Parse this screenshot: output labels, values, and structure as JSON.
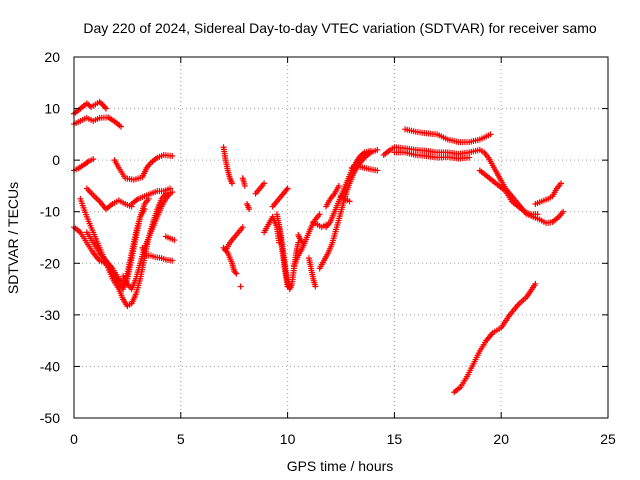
{
  "chart_data": {
    "type": "scatter",
    "title": "Day 220 of 2024, Sidereal Day-to-day VTEC variation (SDTVAR) for receiver samo",
    "xlabel": "GPS time / hours",
    "ylabel": "SDTVAR / TECUs",
    "xlim": [
      0,
      25
    ],
    "ylim": [
      -50,
      20
    ],
    "xticks": [
      0,
      5,
      10,
      15,
      20,
      25
    ],
    "yticks": [
      -50,
      -40,
      -30,
      -20,
      -10,
      0,
      10,
      20
    ],
    "grid": true,
    "marker": "+",
    "color": "#ff0000",
    "series": [
      {
        "values": [
          [
            0,
            9
          ],
          [
            0.3,
            10
          ],
          [
            0.6,
            11
          ],
          [
            0.8,
            10.3
          ],
          [
            1.0,
            10.8
          ],
          [
            1.2,
            11.3
          ],
          [
            1.4,
            10.5
          ],
          [
            1.5,
            10
          ]
        ]
      },
      {
        "values": [
          [
            0,
            7
          ],
          [
            0.3,
            7.6
          ],
          [
            0.6,
            8.2
          ],
          [
            0.9,
            7.6
          ],
          [
            1.2,
            8.2
          ],
          [
            1.6,
            8.3
          ],
          [
            1.9,
            7.5
          ],
          [
            2.2,
            6.5
          ]
        ]
      },
      {
        "values": [
          [
            0,
            -2
          ],
          [
            0.2,
            -1.6
          ],
          [
            0.5,
            -0.8
          ],
          [
            0.7,
            -0.2
          ],
          [
            0.9,
            0.2
          ]
        ]
      },
      {
        "values": [
          [
            1.9,
            0
          ],
          [
            2.1,
            -1.5
          ],
          [
            2.4,
            -3.5
          ],
          [
            2.8,
            -3.8
          ],
          [
            3.2,
            -3.3
          ],
          [
            3.4,
            -1.5
          ],
          [
            3.6,
            -0.5
          ],
          [
            3.9,
            0.5
          ],
          [
            4.2,
            1
          ],
          [
            4.6,
            0.8
          ]
        ]
      },
      {
        "values": [
          [
            0.6,
            -5.5
          ],
          [
            0.9,
            -6.8
          ],
          [
            1.2,
            -8
          ],
          [
            1.5,
            -9.5
          ],
          [
            1.8,
            -8.5
          ],
          [
            2.1,
            -7.8
          ],
          [
            2.4,
            -8.5
          ],
          [
            2.7,
            -9
          ]
        ]
      },
      {
        "values": [
          [
            2.7,
            -8.5
          ],
          [
            3.0,
            -7.5
          ],
          [
            3.3,
            -7
          ],
          [
            3.6,
            -6.5
          ],
          [
            3.9,
            -6
          ],
          [
            4.2,
            -6
          ],
          [
            4.5,
            -5.5
          ]
        ]
      },
      {
        "values": [
          [
            0.3,
            -7.5
          ],
          [
            0.6,
            -11
          ],
          [
            0.9,
            -14
          ],
          [
            1.2,
            -17
          ],
          [
            1.5,
            -20
          ],
          [
            1.8,
            -23
          ],
          [
            2.1,
            -25
          ],
          [
            2.3,
            -27
          ],
          [
            2.5,
            -28.3
          ],
          [
            2.7,
            -27.8
          ],
          [
            2.9,
            -26
          ],
          [
            3.1,
            -23
          ],
          [
            3.3,
            -19
          ],
          [
            3.5,
            -15
          ],
          [
            3.7,
            -12
          ],
          [
            3.9,
            -9.5
          ],
          [
            4.1,
            -7.5
          ],
          [
            4.3,
            -6.5
          ],
          [
            4.6,
            -6.2
          ]
        ]
      },
      {
        "values": [
          [
            0,
            -13
          ],
          [
            0.3,
            -14
          ],
          [
            0.6,
            -16
          ],
          [
            0.9,
            -18
          ],
          [
            1.2,
            -19.5
          ],
          [
            1.5,
            -20
          ],
          [
            1.8,
            -21.5
          ],
          [
            2.1,
            -24
          ],
          [
            2.3,
            -25
          ],
          [
            2.5,
            -23
          ],
          [
            2.7,
            -19
          ],
          [
            2.9,
            -15
          ],
          [
            3.1,
            -11
          ],
          [
            3.3,
            -8.5
          ],
          [
            3.5,
            -7.5
          ]
        ]
      },
      {
        "values": [
          [
            0.6,
            -14
          ],
          [
            0.9,
            -16
          ],
          [
            1.2,
            -18
          ],
          [
            1.5,
            -19.5
          ],
          [
            1.8,
            -21
          ],
          [
            2.1,
            -23
          ],
          [
            2.3,
            -24
          ],
          [
            2.5,
            -22
          ],
          [
            2.7,
            -18
          ],
          [
            2.9,
            -14
          ],
          [
            3.1,
            -11
          ],
          [
            3.3,
            -9.5
          ]
        ]
      },
      {
        "values": [
          [
            2.3,
            -22.5
          ],
          [
            2.5,
            -24
          ],
          [
            2.7,
            -25
          ],
          [
            2.9,
            -23
          ],
          [
            3.1,
            -20
          ],
          [
            3.3,
            -17
          ],
          [
            3.5,
            -15
          ],
          [
            3.7,
            -13
          ],
          [
            3.9,
            -11
          ],
          [
            4.1,
            -9
          ],
          [
            4.3,
            -7.5
          ],
          [
            4.5,
            -6.5
          ]
        ]
      },
      {
        "values": [
          [
            3.2,
            -17
          ],
          [
            3.4,
            -18.5
          ],
          [
            3.6,
            -18.5
          ],
          [
            3.8,
            -18.8
          ],
          [
            4.1,
            -19
          ],
          [
            4.3,
            -19.3
          ],
          [
            4.6,
            -19.5
          ]
        ]
      },
      {
        "values": [
          [
            4.3,
            -14.8
          ],
          [
            4.5,
            -15.2
          ],
          [
            4.7,
            -15.5
          ]
        ]
      },
      {
        "values": [
          [
            7.0,
            2.5
          ],
          [
            7.1,
            0
          ],
          [
            7.2,
            -2
          ],
          [
            7.3,
            -3.5
          ],
          [
            7.4,
            -4.5
          ]
        ]
      },
      {
        "values": [
          [
            7.0,
            -17
          ],
          [
            7.2,
            -18
          ],
          [
            7.4,
            -20
          ],
          [
            7.5,
            -21.5
          ],
          [
            7.6,
            -22
          ]
        ]
      },
      {
        "values": [
          [
            7.1,
            -17.5
          ],
          [
            7.3,
            -16
          ],
          [
            7.5,
            -15
          ],
          [
            7.7,
            -14
          ],
          [
            7.9,
            -13
          ]
        ]
      },
      {
        "values": [
          [
            7.8,
            -24.5
          ]
        ]
      },
      {
        "values": [
          [
            7.9,
            -3.5
          ],
          [
            7.95,
            -4.2
          ],
          [
            8.0,
            -5
          ]
        ]
      },
      {
        "values": [
          [
            8.1,
            -8.5
          ],
          [
            8.2,
            -9.5
          ]
        ]
      },
      {
        "values": [
          [
            8.5,
            -6.5
          ],
          [
            8.7,
            -5.5
          ],
          [
            8.9,
            -4.5
          ]
        ]
      },
      {
        "values": [
          [
            8.9,
            -14
          ],
          [
            9.1,
            -12.5
          ],
          [
            9.3,
            -11
          ],
          [
            9.5,
            -13
          ],
          [
            9.6,
            -16
          ]
        ]
      },
      {
        "values": [
          [
            9.3,
            -9
          ],
          [
            9.5,
            -8
          ],
          [
            9.7,
            -7
          ],
          [
            9.9,
            -6
          ],
          [
            10.0,
            -5.5
          ]
        ]
      },
      {
        "values": [
          [
            9.5,
            -10.5
          ],
          [
            9.6,
            -12.5
          ],
          [
            9.7,
            -15
          ],
          [
            9.8,
            -18
          ],
          [
            9.9,
            -21
          ],
          [
            10.0,
            -23.5
          ],
          [
            10.1,
            -25
          ],
          [
            10.2,
            -24
          ],
          [
            10.3,
            -21
          ],
          [
            10.4,
            -18
          ],
          [
            10.5,
            -16
          ]
        ]
      },
      {
        "values": [
          [
            9.6,
            -13
          ],
          [
            9.7,
            -16
          ],
          [
            9.8,
            -19
          ],
          [
            9.9,
            -22
          ],
          [
            10.0,
            -24.5
          ]
        ]
      },
      {
        "values": [
          [
            10.3,
            -20.5
          ],
          [
            10.5,
            -18.5
          ],
          [
            10.7,
            -17
          ],
          [
            10.9,
            -15
          ],
          [
            11.1,
            -13
          ],
          [
            11.3,
            -11.5
          ],
          [
            11.5,
            -10.5
          ]
        ]
      },
      {
        "values": [
          [
            10.5,
            -14.5
          ],
          [
            10.6,
            -15.5
          ],
          [
            10.7,
            -16
          ]
        ]
      },
      {
        "values": [
          [
            11.0,
            -19
          ],
          [
            11.1,
            -21
          ],
          [
            11.2,
            -23
          ],
          [
            11.3,
            -24.5
          ]
        ]
      },
      {
        "values": [
          [
            11.2,
            -12
          ],
          [
            11.4,
            -12.5
          ],
          [
            11.6,
            -13
          ],
          [
            11.8,
            -12.5
          ]
        ]
      },
      {
        "values": [
          [
            11.5,
            -21
          ],
          [
            11.7,
            -19.5
          ],
          [
            11.9,
            -18
          ],
          [
            12.1,
            -16
          ],
          [
            12.3,
            -13
          ],
          [
            12.5,
            -10
          ],
          [
            12.7,
            -7
          ],
          [
            12.9,
            -4.5
          ],
          [
            13.1,
            -2.5
          ],
          [
            13.3,
            -1
          ],
          [
            13.6,
            0.5
          ],
          [
            13.9,
            1.5
          ],
          [
            14.2,
            2
          ]
        ]
      },
      {
        "values": [
          [
            11.8,
            -13
          ],
          [
            12.0,
            -12
          ],
          [
            12.2,
            -10
          ],
          [
            12.4,
            -8
          ],
          [
            12.6,
            -6
          ],
          [
            12.8,
            -4
          ],
          [
            13.0,
            -2
          ],
          [
            13.2,
            -0.5
          ],
          [
            13.4,
            0.8
          ],
          [
            13.6,
            1.5
          ],
          [
            13.9,
            1.8
          ]
        ]
      },
      {
        "values": [
          [
            11.8,
            -9
          ],
          [
            12.0,
            -7.5
          ],
          [
            12.2,
            -6.5
          ],
          [
            12.4,
            -5
          ]
        ]
      },
      {
        "values": [
          [
            12.5,
            -7
          ],
          [
            12.7,
            -7.5
          ],
          [
            12.9,
            -8
          ]
        ]
      },
      {
        "values": [
          [
            13.0,
            -1.5
          ],
          [
            13.3,
            -1.2
          ],
          [
            13.6,
            -1.5
          ],
          [
            13.9,
            -1.8
          ],
          [
            14.2,
            -2
          ]
        ]
      },
      {
        "values": [
          [
            14.5,
            1
          ],
          [
            14.8,
            2
          ],
          [
            15.0,
            2.5
          ],
          [
            15.5,
            2.3
          ],
          [
            16.0,
            2
          ],
          [
            16.5,
            1.8
          ],
          [
            17.0,
            1.5
          ],
          [
            17.5,
            1.5
          ],
          [
            18.0,
            1.2
          ],
          [
            18.5,
            1.5
          ],
          [
            19.0,
            2
          ],
          [
            19.2,
            1.5
          ],
          [
            19.4,
            0.5
          ],
          [
            19.6,
            -1
          ],
          [
            19.8,
            -2.5
          ],
          [
            20.0,
            -4
          ],
          [
            20.2,
            -5.5
          ],
          [
            20.4,
            -6.5
          ],
          [
            20.6,
            -7.5
          ],
          [
            20.8,
            -8.5
          ],
          [
            21.0,
            -9.5
          ],
          [
            21.2,
            -10.5
          ],
          [
            21.5,
            -11
          ],
          [
            21.8,
            -11.5
          ],
          [
            22.1,
            -12.2
          ],
          [
            22.4,
            -12
          ],
          [
            22.7,
            -11
          ],
          [
            22.9,
            -10
          ]
        ]
      },
      {
        "values": [
          [
            15.0,
            1.5
          ],
          [
            15.5,
            1.5
          ],
          [
            16.0,
            1
          ],
          [
            16.5,
            0.8
          ],
          [
            17.0,
            0.5
          ],
          [
            17.5,
            0.6
          ],
          [
            18.0,
            0.3
          ],
          [
            18.5,
            0.5
          ]
        ]
      },
      {
        "values": [
          [
            15.5,
            6
          ],
          [
            16.0,
            5.5
          ],
          [
            16.5,
            5.2
          ],
          [
            17.0,
            5
          ],
          [
            17.5,
            4
          ],
          [
            18.0,
            3.5
          ],
          [
            18.5,
            3.5
          ],
          [
            19.0,
            4
          ],
          [
            19.5,
            5
          ]
        ]
      },
      {
        "values": [
          [
            19.0,
            -2
          ],
          [
            19.3,
            -3
          ],
          [
            19.6,
            -4
          ],
          [
            19.9,
            -5
          ],
          [
            20.2,
            -6
          ],
          [
            20.5,
            -8
          ],
          [
            20.8,
            -9
          ],
          [
            21.1,
            -10
          ],
          [
            21.4,
            -10.5
          ],
          [
            21.7,
            -10.5
          ]
        ]
      },
      {
        "values": [
          [
            21.6,
            -8.5
          ],
          [
            21.9,
            -8
          ],
          [
            22.2,
            -7.5
          ],
          [
            22.4,
            -7
          ],
          [
            22.6,
            -5.5
          ],
          [
            22.8,
            -4.5
          ]
        ]
      },
      {
        "values": [
          [
            17.8,
            -45
          ],
          [
            18.1,
            -44
          ],
          [
            18.4,
            -42
          ],
          [
            18.7,
            -39.5
          ],
          [
            19.0,
            -37
          ],
          [
            19.3,
            -35
          ],
          [
            19.6,
            -33.5
          ],
          [
            20.0,
            -32.5
          ],
          [
            20.4,
            -30
          ],
          [
            20.8,
            -28
          ],
          [
            21.2,
            -26.5
          ],
          [
            21.6,
            -24
          ]
        ]
      }
    ]
  }
}
